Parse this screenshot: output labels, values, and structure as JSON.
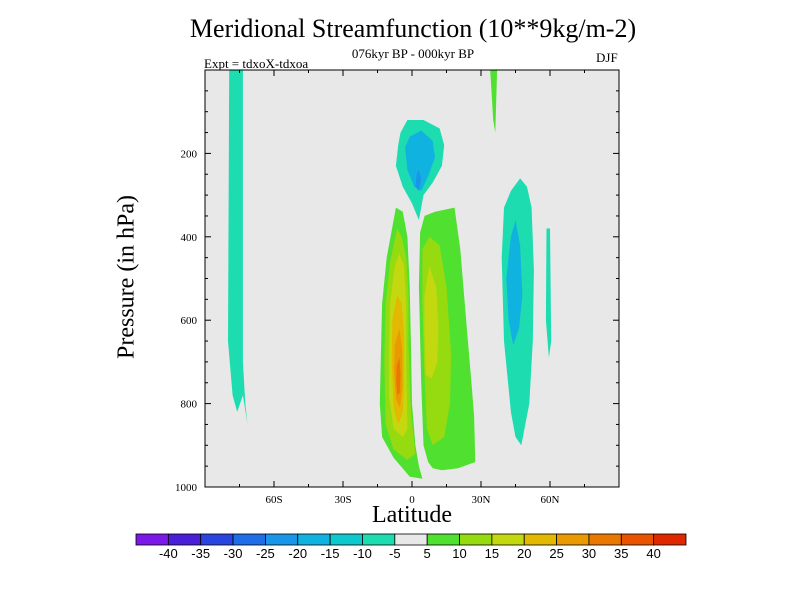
{
  "chart_data": {
    "type": "heatmap",
    "title": "Meridional Streamfunction (10**9kg/m-2)",
    "subtitle": "076kyr BP - 000kyr BP",
    "left_label": "Expt = tdxoX-tdxoa",
    "right_label": "DJF",
    "xlabel": "Latitude",
    "ylabel": "Pressure (in hPa)",
    "xlim": [
      -90,
      90
    ],
    "ylim": [
      1000,
      0
    ],
    "x_ticks": [
      {
        "value": -60,
        "label": "60S"
      },
      {
        "value": -30,
        "label": "30S"
      },
      {
        "value": 0,
        "label": "0"
      },
      {
        "value": 30,
        "label": "30N"
      },
      {
        "value": 60,
        "label": "60N"
      }
    ],
    "y_ticks": [
      {
        "value": 200,
        "label": "200"
      },
      {
        "value": 400,
        "label": "400"
      },
      {
        "value": 600,
        "label": "600"
      },
      {
        "value": 800,
        "label": "800"
      },
      {
        "value": 1000,
        "label": "1000"
      }
    ],
    "background_color": "#e8e8e8",
    "colorbar": {
      "levels": [
        -40,
        -35,
        -30,
        -25,
        -20,
        -15,
        -10,
        -5,
        5,
        10,
        15,
        20,
        25,
        30,
        35,
        40
      ],
      "tick_labels": [
        "-40",
        "-35",
        "-30",
        "-25",
        "-20",
        "-15",
        "-10",
        "-5",
        "5",
        "10",
        "15",
        "20",
        "25",
        "30",
        "35",
        "40"
      ],
      "colors": [
        "#7d19e8",
        "#4a1fd8",
        "#2845e0",
        "#1f6ee8",
        "#1a96e8",
        "#10b3e0",
        "#0dc8cc",
        "#1ddcb0",
        "#e8e8e8",
        "#50e030",
        "#96da10",
        "#c4d810",
        "#e2b800",
        "#e89a00",
        "#e87800",
        "#e85200",
        "#e02800"
      ]
    },
    "regions": [
      {
        "name": "southern-high-lat-cell",
        "level": -10,
        "color": "#1ddcb0",
        "polygon": [
          [
            -79.5,
            0
          ],
          [
            -73.5,
            0
          ],
          [
            -73.5,
            700
          ],
          [
            -72.5,
            800
          ],
          [
            -71.5,
            850
          ],
          [
            -73.5,
            780
          ],
          [
            -76,
            820
          ],
          [
            -78,
            780
          ],
          [
            -80,
            650
          ]
        ]
      },
      {
        "name": "upper-cell-outer",
        "level": -10,
        "color": "#1ddcb0",
        "polygon": [
          [
            -6,
            180
          ],
          [
            -5,
            150
          ],
          [
            -2,
            120
          ],
          [
            5,
            120
          ],
          [
            12,
            140
          ],
          [
            14,
            180
          ],
          [
            13,
            230
          ],
          [
            9,
            270
          ],
          [
            5,
            300
          ],
          [
            3,
            360
          ],
          [
            0,
            320
          ],
          [
            -4,
            280
          ],
          [
            -7,
            230
          ]
        ]
      },
      {
        "name": "upper-cell-inner",
        "level": -15,
        "color": "#10b3e0",
        "polygon": [
          [
            -3,
            185
          ],
          [
            -1,
            160
          ],
          [
            4,
            145
          ],
          [
            9,
            170
          ],
          [
            10,
            210
          ],
          [
            7,
            255
          ],
          [
            4,
            290
          ],
          [
            1,
            280
          ],
          [
            -2,
            240
          ]
        ]
      },
      {
        "name": "upper-cell-core",
        "level": -20,
        "color": "#1a96e8",
        "polygon": [
          [
            2,
            250
          ],
          [
            3,
            240
          ],
          [
            4,
            260
          ],
          [
            3,
            290
          ],
          [
            1.5,
            280
          ]
        ]
      },
      {
        "name": "northern-cell-outer",
        "level": -10,
        "color": "#1ddcb0",
        "polygon": [
          [
            40,
            330
          ],
          [
            43,
            290
          ],
          [
            47,
            260
          ],
          [
            50,
            280
          ],
          [
            52,
            330
          ],
          [
            53,
            480
          ],
          [
            52.5,
            650
          ],
          [
            51,
            800
          ],
          [
            47.5,
            900
          ],
          [
            45,
            880
          ],
          [
            43,
            820
          ],
          [
            40,
            650
          ],
          [
            39,
            450
          ]
        ]
      },
      {
        "name": "northern-cell-inner",
        "level": -15,
        "color": "#10b3e0",
        "polygon": [
          [
            41,
            500
          ],
          [
            43,
            400
          ],
          [
            45,
            360
          ],
          [
            47,
            420
          ],
          [
            48,
            540
          ],
          [
            46.5,
            620
          ],
          [
            44,
            660
          ],
          [
            42,
            600
          ]
        ]
      },
      {
        "name": "northern-cell-tail",
        "level": -10,
        "color": "#1ddcb0",
        "polygon": [
          [
            58.5,
            380
          ],
          [
            60,
            380
          ],
          [
            60.5,
            650
          ],
          [
            59.5,
            690
          ],
          [
            58.2,
            600
          ]
        ]
      },
      {
        "name": "northern-upper-streak",
        "level": 5,
        "color": "#50e030",
        "polygon": [
          [
            34,
            0
          ],
          [
            37,
            0
          ],
          [
            36.2,
            150
          ],
          [
            35.3,
            120
          ]
        ]
      },
      {
        "name": "tropical-left-lobe-5",
        "level": 5,
        "color": "#50e030",
        "polygon": [
          [
            -13,
            560
          ],
          [
            -11,
            450
          ],
          [
            -7,
            330
          ],
          [
            -4,
            340
          ],
          [
            -2,
            400
          ],
          [
            -1,
            520
          ],
          [
            -0.5,
            650
          ],
          [
            0,
            800
          ],
          [
            1.5,
            900
          ],
          [
            3,
            950
          ],
          [
            4.5,
            980
          ],
          [
            -1,
            975
          ],
          [
            -8,
            930
          ],
          [
            -13,
            880
          ],
          [
            -14,
            800
          ],
          [
            -13.5,
            680
          ]
        ]
      },
      {
        "name": "tropical-right-lobe-5",
        "level": 5,
        "color": "#50e030",
        "polygon": [
          [
            3.5,
            390
          ],
          [
            5.5,
            350
          ],
          [
            10,
            340
          ],
          [
            18.5,
            330
          ],
          [
            21,
            430
          ],
          [
            24,
            630
          ],
          [
            26,
            760
          ],
          [
            27,
            830
          ],
          [
            27.5,
            940
          ],
          [
            20,
            955
          ],
          [
            13,
            960
          ],
          [
            9,
            955
          ],
          [
            7,
            940
          ],
          [
            5,
            900
          ],
          [
            4,
            750
          ],
          [
            3,
            520
          ]
        ]
      },
      {
        "name": "tropical-left-lobe-10",
        "level": 10,
        "color": "#96da10",
        "polygon": [
          [
            -11.5,
            560
          ],
          [
            -9.5,
            460
          ],
          [
            -6.5,
            380
          ],
          [
            -4.5,
            400
          ],
          [
            -2.5,
            450
          ],
          [
            -1.5,
            540
          ],
          [
            -1.5,
            660
          ],
          [
            -0.5,
            820
          ],
          [
            1.5,
            920
          ],
          [
            -2,
            935
          ],
          [
            -8,
            910
          ],
          [
            -11.5,
            850
          ],
          [
            -12,
            700
          ]
        ]
      },
      {
        "name": "tropical-right-lobe-10",
        "level": 10,
        "color": "#96da10",
        "polygon": [
          [
            4.5,
            430
          ],
          [
            7.5,
            400
          ],
          [
            12,
            420
          ],
          [
            15,
            520
          ],
          [
            17,
            680
          ],
          [
            16.5,
            800
          ],
          [
            14,
            880
          ],
          [
            9,
            900
          ],
          [
            6.5,
            860
          ],
          [
            5.2,
            700
          ],
          [
            4.5,
            560
          ]
        ]
      },
      {
        "name": "tropical-left-lobe-15",
        "level": 15,
        "color": "#c4d810",
        "polygon": [
          [
            -9.5,
            560
          ],
          [
            -7.5,
            470
          ],
          [
            -5.5,
            440
          ],
          [
            -3.5,
            470
          ],
          [
            -2.5,
            560
          ],
          [
            -2.5,
            700
          ],
          [
            -2,
            860
          ],
          [
            -4,
            880
          ],
          [
            -8,
            860
          ],
          [
            -10,
            780
          ],
          [
            -10,
            660
          ]
        ]
      },
      {
        "name": "tropical-right-lobe-15",
        "level": 15,
        "color": "#c4d810",
        "polygon": [
          [
            5.5,
            540
          ],
          [
            7.5,
            470
          ],
          [
            10.5,
            520
          ],
          [
            11.5,
            610
          ],
          [
            11,
            700
          ],
          [
            8.5,
            740
          ],
          [
            6,
            730
          ],
          [
            5.5,
            640
          ]
        ]
      },
      {
        "name": "tropical-left-lobe-20",
        "level": 20,
        "color": "#e2b800",
        "polygon": [
          [
            -8.5,
            600
          ],
          [
            -6.5,
            540
          ],
          [
            -4.5,
            560
          ],
          [
            -3.5,
            630
          ],
          [
            -3.5,
            750
          ],
          [
            -4,
            820
          ],
          [
            -6,
            850
          ],
          [
            -8,
            810
          ],
          [
            -8.8,
            700
          ]
        ]
      },
      {
        "name": "tropical-left-lobe-25",
        "level": 25,
        "color": "#e89a00",
        "polygon": [
          [
            -7.5,
            660
          ],
          [
            -5.5,
            620
          ],
          [
            -4.3,
            670
          ],
          [
            -4.2,
            760
          ],
          [
            -5.2,
            810
          ],
          [
            -7,
            790
          ],
          [
            -7.8,
            720
          ]
        ]
      },
      {
        "name": "tropical-left-lobe-30",
        "level": 30,
        "color": "#e87800",
        "polygon": [
          [
            -6.7,
            710
          ],
          [
            -5.5,
            690
          ],
          [
            -5,
            730
          ],
          [
            -5.4,
            775
          ],
          [
            -6.4,
            780
          ],
          [
            -6.9,
            745
          ]
        ]
      }
    ]
  }
}
